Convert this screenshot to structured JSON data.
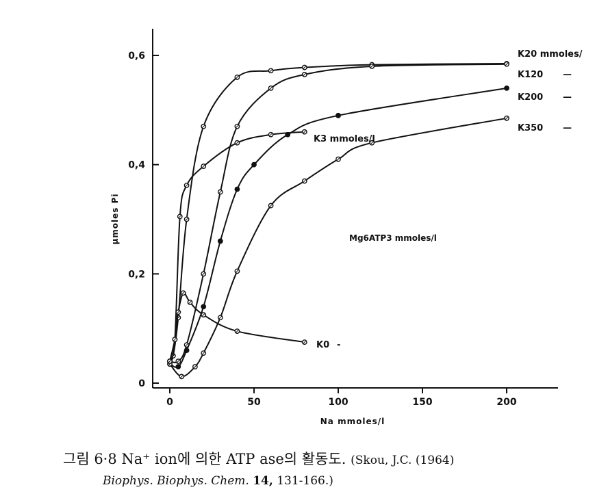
{
  "chart_data": {
    "type": "line",
    "xlabel": "Na mmoles/l",
    "ylabel": "μmoles Pi",
    "xlim": [
      -10,
      228
    ],
    "ylim": [
      0,
      0.66
    ],
    "xticks": [
      "0",
      "50",
      "100",
      "150",
      "200"
    ],
    "yticks": [
      "0",
      "0,2",
      "0,4",
      "0,6"
    ],
    "annotation": "Mg6ATP3 mmoles/l",
    "series": [
      {
        "name": "K20 mmoles/",
        "label_dash": "",
        "marker": "open",
        "points": [
          [
            0,
            0.04
          ],
          [
            2,
            0.05
          ],
          [
            5,
            0.12
          ],
          [
            10,
            0.3
          ],
          [
            20,
            0.47
          ],
          [
            40,
            0.56
          ],
          [
            60,
            0.572
          ],
          [
            80,
            0.578
          ],
          [
            120,
            0.583
          ],
          [
            200,
            0.585
          ]
        ]
      },
      {
        "name": "K120",
        "label_dash": "—",
        "marker": "open",
        "points": [
          [
            0,
            0.04
          ],
          [
            5,
            0.04
          ],
          [
            10,
            0.07
          ],
          [
            20,
            0.2
          ],
          [
            30,
            0.35
          ],
          [
            40,
            0.47
          ],
          [
            60,
            0.54
          ],
          [
            80,
            0.565
          ],
          [
            120,
            0.58
          ],
          [
            200,
            0.584
          ]
        ]
      },
      {
        "name": "K200",
        "label_dash": "—",
        "marker": "filled",
        "points": [
          [
            0,
            0.035
          ],
          [
            5,
            0.03
          ],
          [
            10,
            0.06
          ],
          [
            20,
            0.14
          ],
          [
            30,
            0.26
          ],
          [
            40,
            0.355
          ],
          [
            50,
            0.4
          ],
          [
            70,
            0.455
          ],
          [
            100,
            0.49
          ],
          [
            200,
            0.54
          ]
        ]
      },
      {
        "name": "K350",
        "label_dash": "—",
        "marker": "open",
        "points": [
          [
            0,
            0.035
          ],
          [
            7,
            0.012
          ],
          [
            15,
            0.03
          ],
          [
            20,
            0.055
          ],
          [
            30,
            0.12
          ],
          [
            40,
            0.205
          ],
          [
            60,
            0.325
          ],
          [
            80,
            0.37
          ],
          [
            100,
            0.41
          ],
          [
            120,
            0.44
          ],
          [
            200,
            0.485
          ]
        ]
      },
      {
        "name": "K3 mmoles/l",
        "label_dash": "",
        "marker": "open",
        "points": [
          [
            0,
            0.04
          ],
          [
            3,
            0.08
          ],
          [
            6,
            0.305
          ],
          [
            10,
            0.362
          ],
          [
            20,
            0.397
          ],
          [
            40,
            0.44
          ],
          [
            60,
            0.455
          ],
          [
            80,
            0.46
          ]
        ]
      },
      {
        "name": "K0",
        "label_dash": "-",
        "marker": "open",
        "points": [
          [
            0,
            0.04
          ],
          [
            3,
            0.08
          ],
          [
            5,
            0.13
          ],
          [
            8,
            0.165
          ],
          [
            12,
            0.148
          ],
          [
            20,
            0.125
          ],
          [
            40,
            0.095
          ],
          [
            80,
            0.075
          ]
        ]
      }
    ]
  },
  "caption": {
    "figure_number": "그림 6·8",
    "title": "Na⁺ ion에 의한 ATP ase의 활동도.",
    "citation": "(Skou, J.C. (1964)",
    "journal": "Biophys. Biophys. Chem.",
    "volume": "14,",
    "pages": "131-166.)"
  }
}
